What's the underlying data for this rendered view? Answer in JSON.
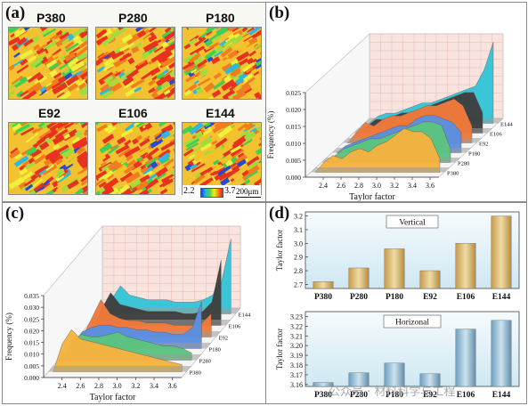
{
  "panel_a": {
    "label": "(a)",
    "maps": [
      "P380",
      "P280",
      "P180",
      "E92",
      "E106",
      "E144"
    ],
    "colorbar_min": "2.2",
    "colorbar_max": "3.7",
    "scalebar": "200μm"
  },
  "panel_b": {
    "label": "(b)"
  },
  "panel_c": {
    "label": "(c)"
  },
  "panel_d": {
    "label": "(d)"
  },
  "watermark": "公众号 · 材料科学与工程",
  "chart_data": [
    {
      "id": "b",
      "type": "area",
      "title": "",
      "xlabel": "Taylor factor",
      "ylabel": "Frequency (%)",
      "xlim": [
        2.2,
        3.7
      ],
      "ylim": [
        0,
        0.025
      ],
      "xticks": [
        "2.4",
        "2.6",
        "2.8",
        "3.0",
        "3.2",
        "3.4",
        "3.6"
      ],
      "yticks": [
        "0.000",
        "0.005",
        "0.010",
        "0.015",
        "0.020",
        "0.025"
      ],
      "x": [
        2.25,
        2.35,
        2.45,
        2.55,
        2.65,
        2.75,
        2.85,
        2.95,
        3.05,
        3.15,
        3.25,
        3.35,
        3.45,
        3.55,
        3.65
      ],
      "series": [
        {
          "name": "P380",
          "color": "#f5b33f",
          "values": [
            0.0,
            0.003,
            0.005,
            0.004,
            0.006,
            0.007,
            0.006,
            0.008,
            0.009,
            0.011,
            0.013,
            0.012,
            0.012,
            0.01,
            0.004
          ]
        },
        {
          "name": "P280",
          "color": "#5cc47f",
          "values": [
            0.0,
            0.002,
            0.004,
            0.005,
            0.006,
            0.007,
            0.007,
            0.008,
            0.009,
            0.01,
            0.011,
            0.012,
            0.012,
            0.011,
            0.004
          ]
        },
        {
          "name": "P180",
          "color": "#5b8fe0",
          "values": [
            0.0,
            0.002,
            0.003,
            0.004,
            0.005,
            0.006,
            0.007,
            0.008,
            0.008,
            0.01,
            0.011,
            0.011,
            0.01,
            0.009,
            0.006
          ]
        },
        {
          "name": "E92",
          "color": "#f07a3a",
          "values": [
            0.0,
            0.003,
            0.006,
            0.005,
            0.007,
            0.008,
            0.008,
            0.009,
            0.01,
            0.011,
            0.011,
            0.012,
            0.013,
            0.011,
            0.005
          ]
        },
        {
          "name": "E106",
          "color": "#3f3f3f",
          "values": [
            0.0,
            0.002,
            0.004,
            0.004,
            0.005,
            0.006,
            0.006,
            0.007,
            0.008,
            0.009,
            0.01,
            0.011,
            0.012,
            0.012,
            0.006
          ]
        },
        {
          "name": "E144",
          "color": "#35c5d6",
          "values": [
            0.0,
            0.002,
            0.003,
            0.003,
            0.004,
            0.005,
            0.006,
            0.006,
            0.007,
            0.008,
            0.009,
            0.01,
            0.011,
            0.016,
            0.024
          ]
        }
      ]
    },
    {
      "id": "c",
      "type": "area",
      "title": "",
      "xlabel": "Taylor factor",
      "ylabel": "Frequency (%)",
      "xlim": [
        2.2,
        3.7
      ],
      "ylim": [
        0,
        0.035
      ],
      "xticks": [
        "2.4",
        "2.6",
        "2.8",
        "3.0",
        "3.2",
        "3.4",
        "3.6"
      ],
      "yticks": [
        "0.000",
        "0.005",
        "0.010",
        "0.015",
        "0.020",
        "0.025",
        "0.030",
        "0.035"
      ],
      "x": [
        2.25,
        2.35,
        2.45,
        2.55,
        2.65,
        2.75,
        2.85,
        2.95,
        3.05,
        3.15,
        3.25,
        3.35,
        3.45,
        3.55,
        3.65
      ],
      "series": [
        {
          "name": "P380",
          "color": "#f5b33f",
          "values": [
            0.0,
            0.012,
            0.018,
            0.014,
            0.013,
            0.012,
            0.011,
            0.01,
            0.009,
            0.008,
            0.007,
            0.006,
            0.005,
            0.004,
            0.003
          ]
        },
        {
          "name": "P280",
          "color": "#5cc47f",
          "values": [
            0.0,
            0.008,
            0.011,
            0.01,
            0.01,
            0.011,
            0.012,
            0.01,
            0.009,
            0.008,
            0.007,
            0.006,
            0.006,
            0.005,
            0.003
          ]
        },
        {
          "name": "P180",
          "color": "#5b8fe0",
          "values": [
            0.0,
            0.007,
            0.009,
            0.01,
            0.01,
            0.009,
            0.009,
            0.008,
            0.008,
            0.007,
            0.007,
            0.006,
            0.006,
            0.009,
            0.02
          ]
        },
        {
          "name": "E92",
          "color": "#f07a3a",
          "values": [
            0.0,
            0.008,
            0.016,
            0.01,
            0.008,
            0.007,
            0.007,
            0.006,
            0.006,
            0.006,
            0.005,
            0.005,
            0.005,
            0.006,
            0.01
          ]
        },
        {
          "name": "E106",
          "color": "#3f3f3f",
          "values": [
            0.0,
            0.007,
            0.014,
            0.009,
            0.008,
            0.007,
            0.006,
            0.006,
            0.006,
            0.006,
            0.005,
            0.005,
            0.006,
            0.01,
            0.028
          ]
        },
        {
          "name": "E144",
          "color": "#35c5d6",
          "values": [
            0.0,
            0.006,
            0.012,
            0.008,
            0.007,
            0.006,
            0.006,
            0.006,
            0.005,
            0.005,
            0.005,
            0.006,
            0.008,
            0.014,
            0.032
          ]
        }
      ]
    },
    {
      "id": "d-vertical",
      "type": "bar",
      "title": "Vertical",
      "xlabel": "",
      "ylabel": "Taylor factor",
      "categories": [
        "P380",
        "P280",
        "P180",
        "E92",
        "E106",
        "E144"
      ],
      "values": [
        2.72,
        2.82,
        2.96,
        2.8,
        3.0,
        3.2
      ],
      "ylim": [
        2.67,
        3.23
      ],
      "yticks": [
        "2.7",
        "2.8",
        "2.9",
        "3.0",
        "3.1",
        "3.2"
      ],
      "colors": {
        "normal": "#d6b676",
        "highlight": "#8fb9d3"
      }
    },
    {
      "id": "d-horizonal",
      "type": "bar",
      "title": "Horizonal",
      "xlabel": "",
      "ylabel": "Taylor factor",
      "categories": [
        "P380",
        "P280",
        "P180",
        "E92",
        "E106",
        "E144"
      ],
      "values": [
        3.162,
        3.172,
        3.182,
        3.171,
        3.217,
        3.226
      ],
      "ylim": [
        3.158,
        3.235
      ],
      "yticks": [
        "3.16",
        "3.17",
        "3.18",
        "3.19",
        "3.20",
        "3.21",
        "3.22",
        "3.23"
      ],
      "colors": {
        "normal": "#8fb9d3",
        "highlight": "#8fb9d3"
      }
    }
  ]
}
